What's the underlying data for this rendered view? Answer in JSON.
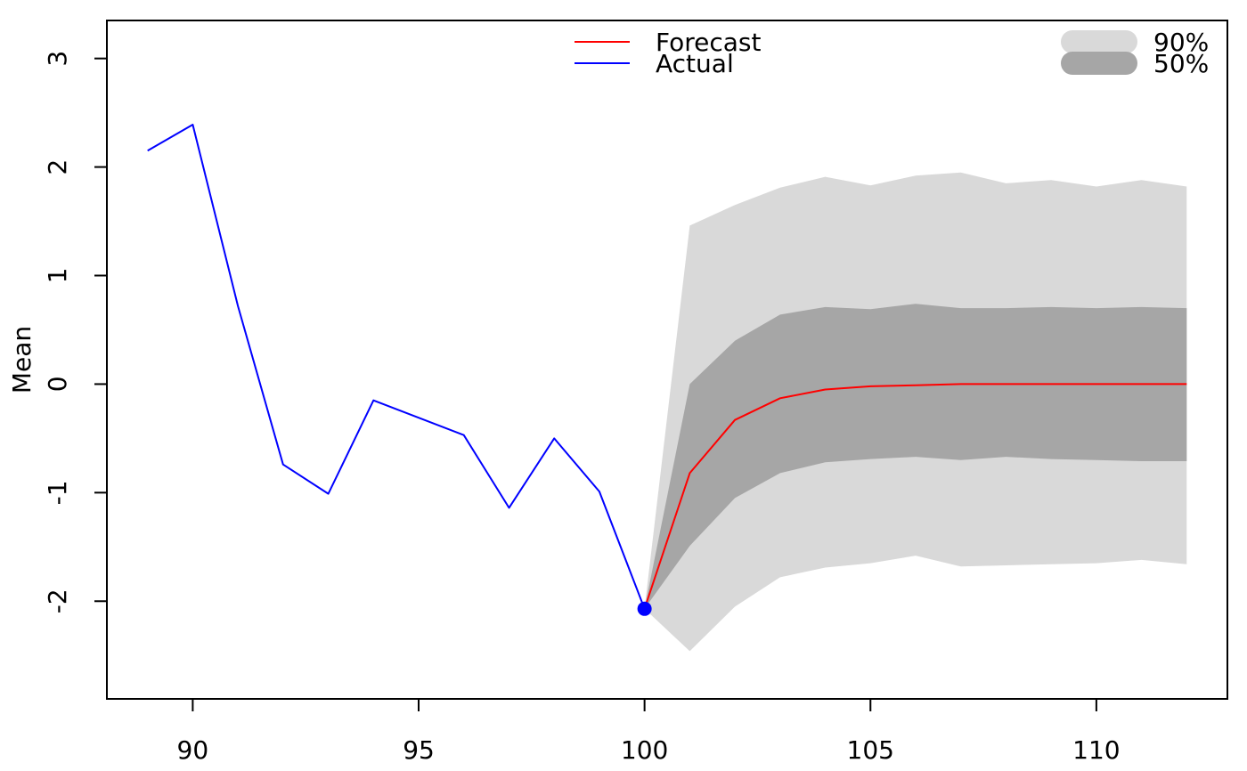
{
  "chart_data": {
    "type": "line",
    "title": "",
    "xlabel": "",
    "ylabel": "Mean",
    "xlim": [
      88.1,
      112.9
    ],
    "ylim": [
      -2.9,
      3.35
    ],
    "x_ticks": [
      90,
      95,
      100,
      105,
      110
    ],
    "y_ticks": [
      -2,
      -1,
      0,
      1,
      2,
      3
    ],
    "series": [
      {
        "name": "Actual",
        "color": "#0000ff",
        "x": [
          89,
          90,
          91,
          92,
          93,
          94,
          95,
          96,
          97,
          98,
          99,
          100
        ],
        "values": [
          2.15,
          2.39,
          0.72,
          -0.74,
          -1.01,
          -0.15,
          -0.31,
          -0.47,
          -1.14,
          -0.5,
          -0.99,
          -2.07
        ]
      },
      {
        "name": "Forecast",
        "color": "#ff0000",
        "x": [
          100,
          101,
          102,
          103,
          104,
          105,
          106,
          107,
          108,
          109,
          110,
          111,
          112
        ],
        "values": [
          -2.07,
          -0.82,
          -0.33,
          -0.13,
          -0.05,
          -0.02,
          -0.01,
          0.0,
          0.0,
          0.0,
          0.0,
          0.0,
          0.0
        ]
      }
    ],
    "intervals": [
      {
        "name": "90%",
        "color": "#d9d9d9",
        "x": [
          100,
          101,
          102,
          103,
          104,
          105,
          106,
          107,
          108,
          109,
          110,
          111,
          112
        ],
        "lower": [
          -2.07,
          -2.46,
          -2.05,
          -1.78,
          -1.69,
          -1.65,
          -1.58,
          -1.68,
          -1.67,
          -1.66,
          -1.65,
          -1.62,
          -1.66
        ],
        "upper": [
          -2.07,
          1.46,
          1.65,
          1.81,
          1.91,
          1.83,
          1.92,
          1.95,
          1.85,
          1.88,
          1.82,
          1.88,
          1.82
        ]
      },
      {
        "name": "50%",
        "color": "#a6a6a6",
        "x": [
          100,
          101,
          102,
          103,
          104,
          105,
          106,
          107,
          108,
          109,
          110,
          111,
          112
        ],
        "lower": [
          -2.07,
          -1.49,
          -1.05,
          -0.82,
          -0.72,
          -0.69,
          -0.67,
          -0.7,
          -0.67,
          -0.69,
          -0.7,
          -0.71,
          -0.71
        ],
        "upper": [
          -2.07,
          0.0,
          0.4,
          0.64,
          0.71,
          0.69,
          0.74,
          0.7,
          0.7,
          0.71,
          0.7,
          0.71,
          0.7
        ]
      }
    ],
    "marker": {
      "x": 100,
      "y": -2.07,
      "color": "#0000ff"
    },
    "legend_lines": {
      "placement": "top-center",
      "entries": [
        {
          "label": "Forecast",
          "color": "#ff0000"
        },
        {
          "label": "Actual",
          "color": "#0000ff"
        }
      ]
    },
    "legend_bands": {
      "placement": "top-right",
      "entries": [
        {
          "label": "90%",
          "color": "#d9d9d9"
        },
        {
          "label": "50%",
          "color": "#a6a6a6"
        }
      ]
    },
    "grid": false
  }
}
